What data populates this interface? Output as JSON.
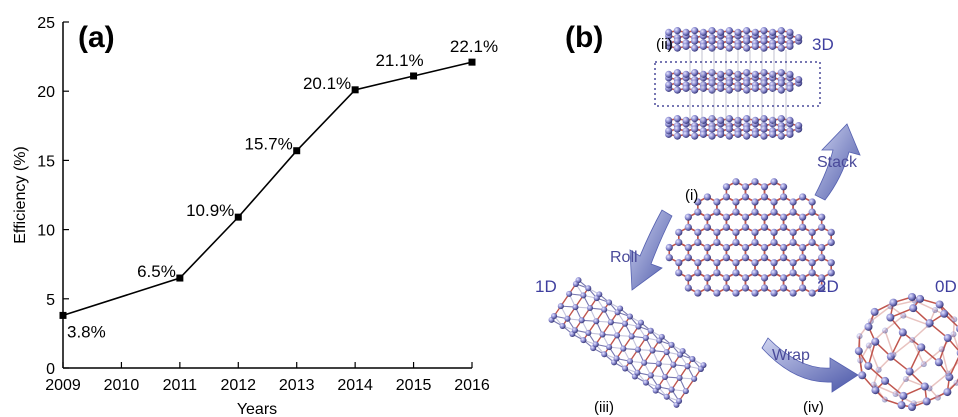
{
  "panel_labels": {
    "a": "(a)",
    "b": "(b)"
  },
  "chart_data": {
    "type": "line",
    "title": "",
    "xlabel": "Years",
    "ylabel": "Efficiency (%)",
    "x": [
      2009,
      2011,
      2012,
      2013,
      2014,
      2015,
      2016
    ],
    "xticks": [
      "2009",
      "2010",
      "2011",
      "2012",
      "2013",
      "2014",
      "2015",
      "2016"
    ],
    "xlim": [
      2009,
      2016
    ],
    "yticks": [
      "0",
      "5",
      "10",
      "15",
      "20",
      "25"
    ],
    "ylim": [
      0,
      25
    ],
    "grid": false,
    "series": [
      {
        "values": [
          3.8,
          6.5,
          10.9,
          15.7,
          20.1,
          21.1,
          22.1
        ],
        "labels": [
          "3.8%",
          "6.5%",
          "10.9%",
          "15.7%",
          "20.1%",
          "21.1%",
          "22.1%"
        ],
        "color": "#000000",
        "marker": "square"
      }
    ]
  },
  "diagram": {
    "center_label": "(i)",
    "center_dim": "2D",
    "top_label": "(ii)",
    "top_dim": "3D",
    "left_label": "(iii)",
    "left_dim": "1D",
    "right_label": "(iv)",
    "right_dim": "0D",
    "arrow_stack": "Stack",
    "arrow_roll": "Roll",
    "arrow_wrap": "Wrap",
    "colors": {
      "atom": "#8a8ad0",
      "bond": "#c0554d",
      "arrow": "#5560b0",
      "dim_text": "#3f3f9f"
    }
  }
}
